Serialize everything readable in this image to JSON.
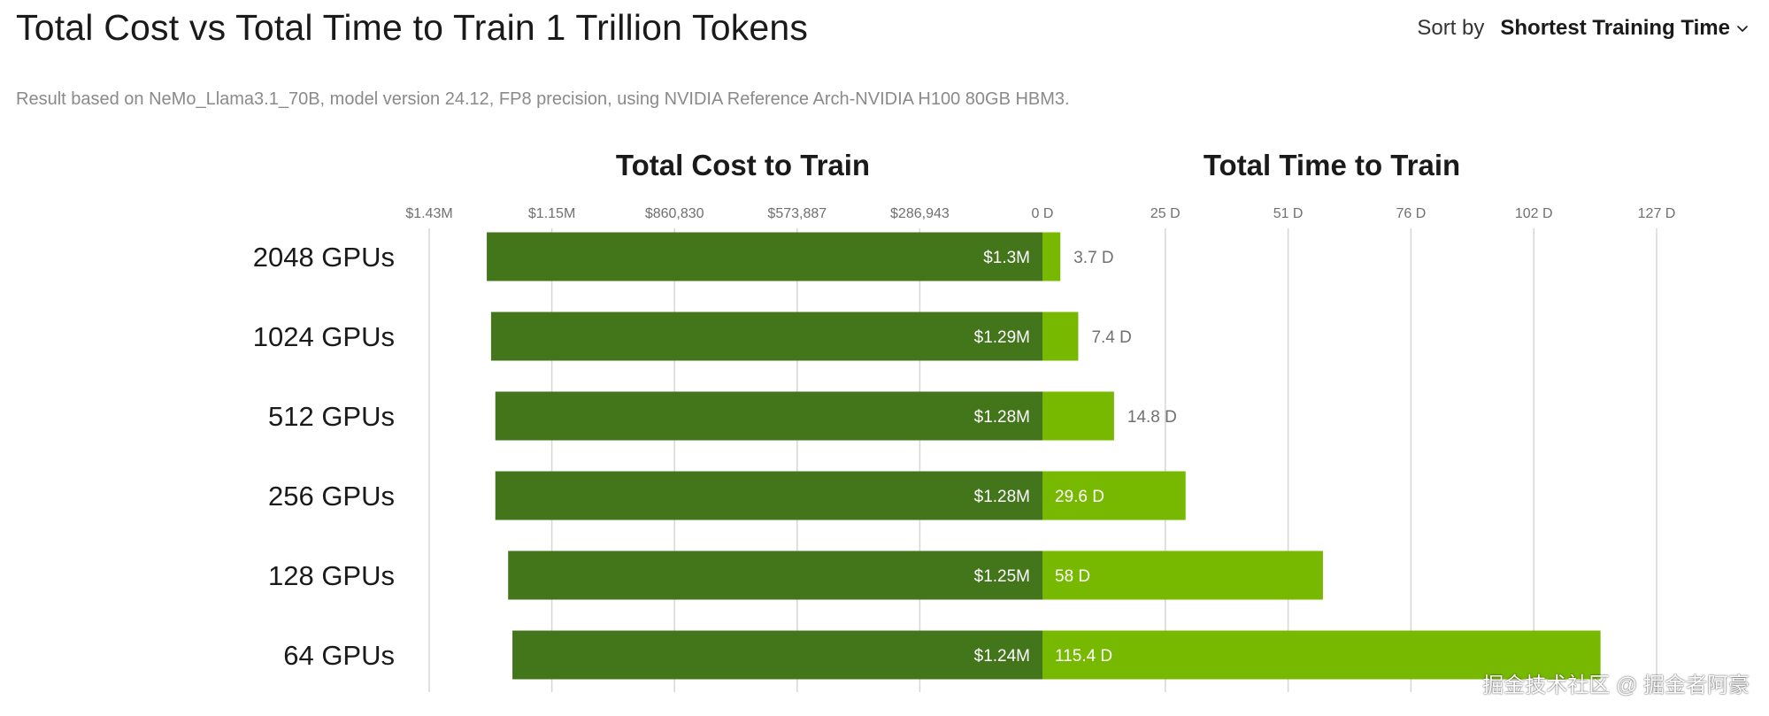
{
  "page": {
    "title": "Total Cost vs Total Time to Train 1 Trillion Tokens",
    "subtitle": "Result based on NeMo_Llama3.1_70B, model version 24.12, FP8 precision, using NVIDIA Reference Arch-NVIDIA H100 80GB HBM3.",
    "sort_label": "Sort by",
    "sort_value": "Shortest Training Time",
    "watermark": "掘金技术社区 @ 掘金者阿豪"
  },
  "colors": {
    "cost_bar": "#43751b",
    "time_bar": "#76b900",
    "gridline": "#d6d6d6",
    "tick_text": "#707070",
    "value_label_inside": "#ffffff",
    "value_label_outside": "#707070"
  },
  "chart_data": {
    "type": "bar",
    "layout": "butterfly",
    "categories": [
      "2048 GPUs",
      "1024 GPUs",
      "512 GPUs",
      "256 GPUs",
      "128 GPUs",
      "64 GPUs"
    ],
    "left_panel": {
      "title": "Total Cost to Train",
      "series_name": "Total Cost",
      "unit": "USD",
      "values": [
        1300000,
        1290000,
        1280000,
        1280000,
        1250000,
        1240000
      ],
      "value_labels": [
        "$1.3M",
        "$1.29M",
        "$1.28M",
        "$1.28M",
        "$1.25M",
        "$1.24M"
      ],
      "axis_range": [
        0,
        1434715
      ],
      "ticks": [
        {
          "value": 1434715,
          "label": "$1.43M"
        },
        {
          "value": 1147772,
          "label": "$1.15M"
        },
        {
          "value": 860830,
          "label": "$860,830"
        },
        {
          "value": 573887,
          "label": "$573,887"
        },
        {
          "value": 286943,
          "label": "$286,943"
        },
        {
          "value": 0,
          "label": "0 D"
        }
      ]
    },
    "right_panel": {
      "title": "Total Time to Train",
      "series_name": "Total Time",
      "unit": "days",
      "values": [
        3.7,
        7.4,
        14.8,
        29.6,
        58,
        115.4
      ],
      "value_labels": [
        "3.7 D",
        "7.4 D",
        "14.8 D",
        "29.6 D",
        "58 D",
        "115.4 D"
      ],
      "axis_range": [
        0,
        127
      ],
      "ticks": [
        {
          "value": 25.4,
          "label": "25 D"
        },
        {
          "value": 50.8,
          "label": "51 D"
        },
        {
          "value": 76.2,
          "label": "76 D"
        },
        {
          "value": 101.6,
          "label": "102 D"
        },
        {
          "value": 127,
          "label": "127 D"
        }
      ]
    }
  }
}
